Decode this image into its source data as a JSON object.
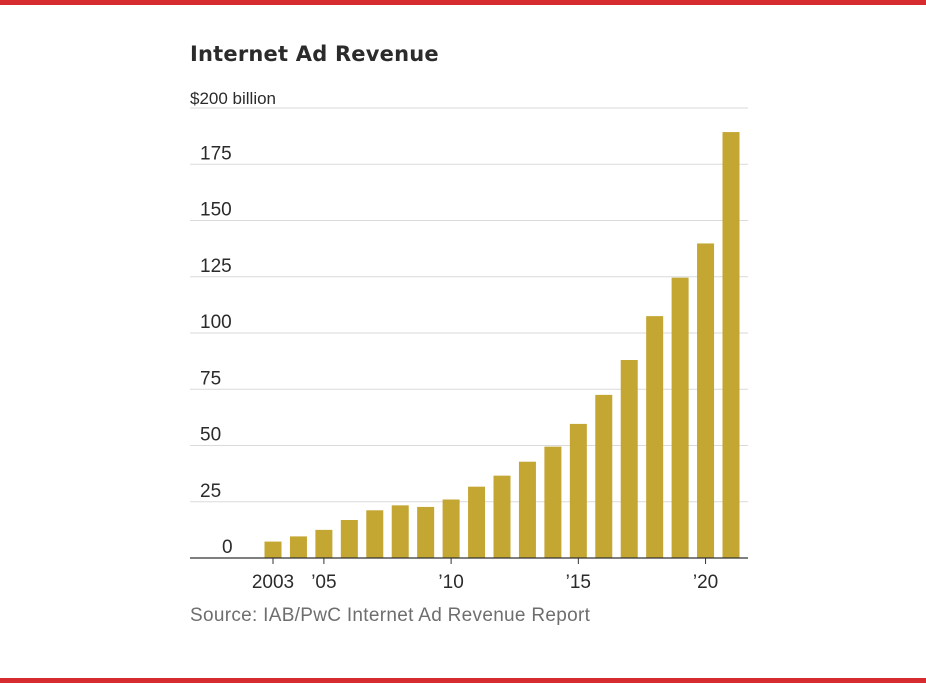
{
  "colors": {
    "accent_rule": "#d62b2f",
    "bar": "#c4a632",
    "grid": "#dadada",
    "axis": "#333333",
    "text": "#2b2b2b",
    "source_text": "#6e6e6e"
  },
  "chart_data": {
    "type": "bar",
    "title": "Internet Ad Revenue",
    "unit_label": "$200 billion",
    "categories": [
      "2003",
      "2004",
      "2005",
      "2006",
      "2007",
      "2008",
      "2009",
      "2010",
      "2011",
      "2012",
      "2013",
      "2014",
      "2015",
      "2016",
      "2017",
      "2018",
      "2019",
      "2020",
      "2021"
    ],
    "x_tick_labels": [
      "2003",
      "’05",
      "’10",
      "’15",
      "’20"
    ],
    "x_tick_categories": [
      "2003",
      "2005",
      "2010",
      "2015",
      "2020"
    ],
    "values": [
      7.3,
      9.6,
      12.5,
      16.9,
      21.2,
      23.4,
      22.7,
      26.0,
      31.7,
      36.6,
      42.8,
      49.5,
      59.6,
      72.5,
      88.0,
      107.5,
      124.6,
      139.8,
      189.3
    ],
    "ylim": [
      0,
      200
    ],
    "y_ticks": [
      0,
      25,
      50,
      75,
      100,
      125,
      150,
      175
    ],
    "grid": true,
    "source": "Source: IAB/PwC Internet Ad Revenue Report"
  }
}
